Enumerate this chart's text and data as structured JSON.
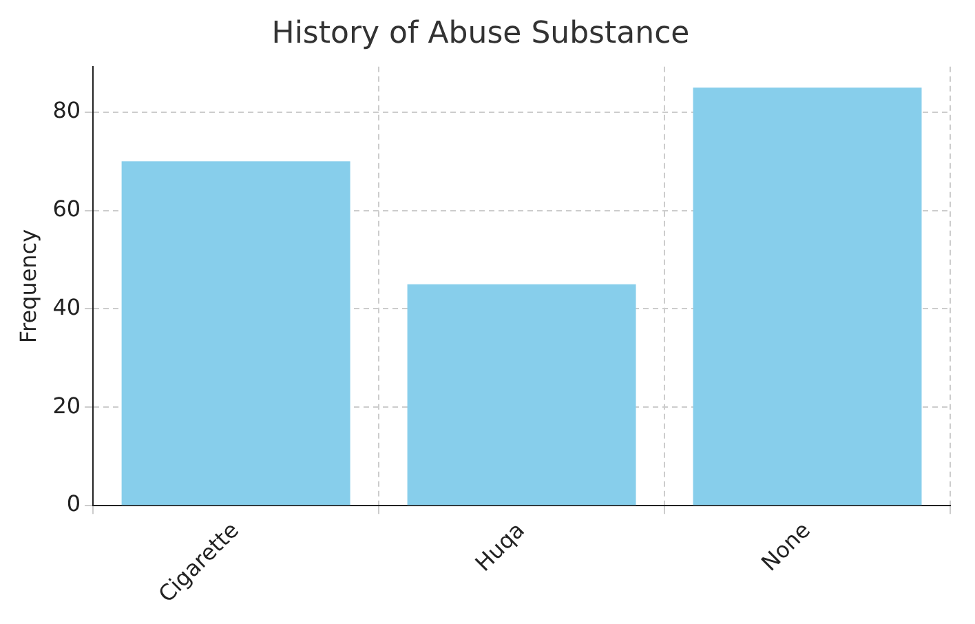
{
  "chart_data": {
    "type": "bar",
    "title": "History of Abuse Substance",
    "ylabel": "Frequency",
    "categories": [
      "Cigarette",
      "Huqa",
      "None"
    ],
    "values": [
      70,
      45,
      85
    ],
    "color": "#87ceeb",
    "ylim": [
      0,
      89.25
    ],
    "yticks": [
      0,
      20,
      40,
      60,
      80
    ],
    "grid": true
  }
}
